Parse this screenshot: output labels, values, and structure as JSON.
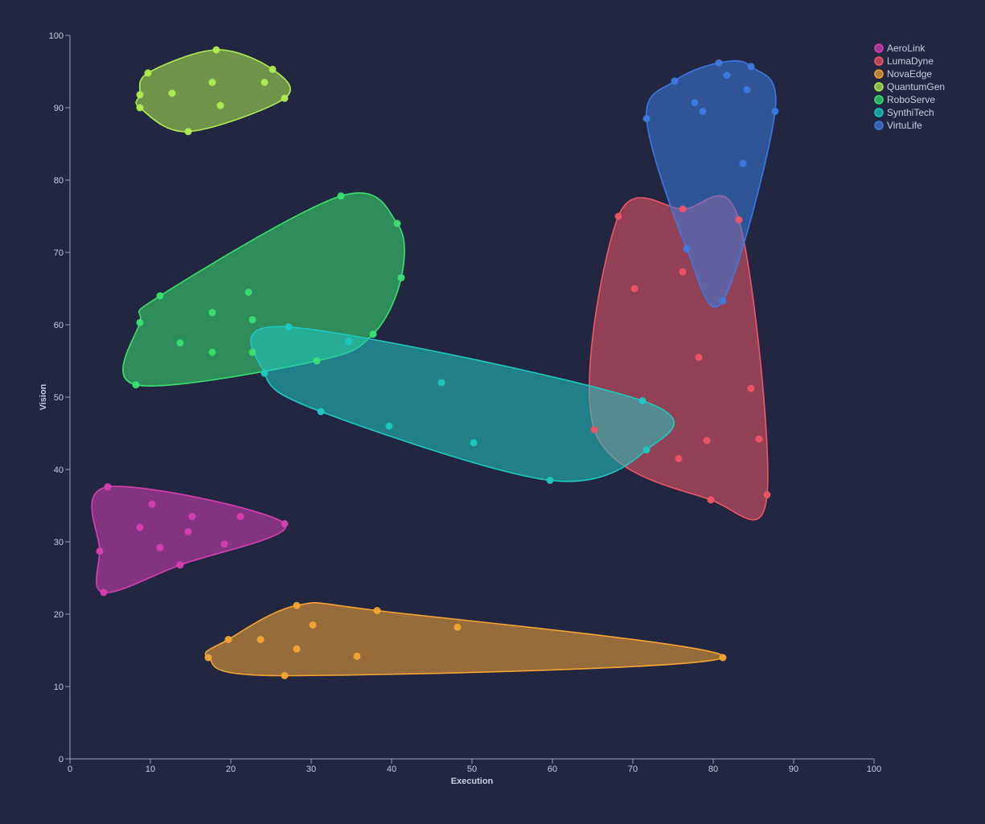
{
  "chart_data": {
    "type": "scatter",
    "title": "",
    "xlabel": "Execution",
    "ylabel": "Vision",
    "xlim": [
      0,
      100
    ],
    "ylim": [
      0,
      100
    ],
    "x_ticks": [
      "0",
      "10",
      "20",
      "30",
      "40",
      "50",
      "60",
      "70",
      "80",
      "90",
      "100"
    ],
    "y_ticks": [
      "0",
      "10",
      "20",
      "30",
      "40",
      "50",
      "60",
      "70",
      "80",
      "90",
      "100"
    ],
    "grid": false,
    "legend_position": "top-right",
    "hull_style": "rounded convex hull per series",
    "series": [
      {
        "name": "AeroLink",
        "color": "#d63fb0",
        "points": [
          [
            4.7,
            37.6
          ],
          [
            10.2,
            35.2
          ],
          [
            8.7,
            32.0
          ],
          [
            15.2,
            33.5
          ],
          [
            21.2,
            33.5
          ],
          [
            26.7,
            32.5
          ],
          [
            14.7,
            31.4
          ],
          [
            11.2,
            29.2
          ],
          [
            19.2,
            29.7
          ],
          [
            13.7,
            26.8
          ],
          [
            3.7,
            28.7
          ],
          [
            4.2,
            23.0
          ]
        ]
      },
      {
        "name": "LumaDyne",
        "color": "#ef5566",
        "points": [
          [
            68.2,
            75.0
          ],
          [
            76.2,
            76.0
          ],
          [
            83.2,
            74.5
          ],
          [
            76.2,
            67.3
          ],
          [
            70.2,
            65.0
          ],
          [
            78.2,
            55.5
          ],
          [
            84.7,
            51.2
          ],
          [
            65.2,
            45.5
          ],
          [
            79.2,
            44.0
          ],
          [
            85.7,
            44.2
          ],
          [
            75.7,
            41.5
          ],
          [
            79.7,
            35.8
          ],
          [
            86.7,
            36.5
          ]
        ]
      },
      {
        "name": "NovaEdge",
        "color": "#f4a534",
        "points": [
          [
            28.2,
            21.2
          ],
          [
            38.2,
            20.5
          ],
          [
            30.2,
            18.5
          ],
          [
            48.2,
            18.2
          ],
          [
            19.7,
            16.5
          ],
          [
            23.7,
            16.5
          ],
          [
            28.2,
            15.2
          ],
          [
            35.7,
            14.2
          ],
          [
            17.2,
            14.0
          ],
          [
            81.2,
            14.0
          ],
          [
            26.7,
            11.5
          ]
        ]
      },
      {
        "name": "QuantumGen",
        "color": "#b0ec51",
        "points": [
          [
            18.2,
            98.0
          ],
          [
            9.7,
            94.8
          ],
          [
            25.2,
            95.3
          ],
          [
            17.7,
            93.5
          ],
          [
            24.2,
            93.5
          ],
          [
            8.7,
            91.8
          ],
          [
            12.7,
            92.0
          ],
          [
            26.7,
            91.3
          ],
          [
            8.7,
            90.0
          ],
          [
            18.7,
            90.3
          ],
          [
            14.7,
            86.7
          ]
        ]
      },
      {
        "name": "RoboServe",
        "color": "#3be071",
        "points": [
          [
            33.7,
            77.8
          ],
          [
            40.7,
            74.0
          ],
          [
            41.2,
            66.5
          ],
          [
            22.2,
            64.5
          ],
          [
            11.2,
            64.0
          ],
          [
            17.7,
            61.7
          ],
          [
            22.7,
            60.7
          ],
          [
            8.7,
            60.3
          ],
          [
            37.7,
            58.7
          ],
          [
            13.7,
            57.5
          ],
          [
            17.7,
            56.2
          ],
          [
            22.7,
            56.2
          ],
          [
            30.7,
            55.0
          ],
          [
            8.2,
            51.7
          ]
        ]
      },
      {
        "name": "SynthiTech",
        "color": "#1fc9c1",
        "points": [
          [
            27.2,
            59.7
          ],
          [
            34.7,
            57.7
          ],
          [
            24.2,
            53.3
          ],
          [
            46.2,
            52.0
          ],
          [
            71.2,
            49.5
          ],
          [
            31.2,
            48.0
          ],
          [
            39.7,
            46.0
          ],
          [
            50.2,
            43.7
          ],
          [
            71.7,
            42.7
          ],
          [
            59.7,
            38.5
          ]
        ]
      },
      {
        "name": "VirtuLife",
        "color": "#3c7ae0",
        "points": [
          [
            80.7,
            96.2
          ],
          [
            84.7,
            95.7
          ],
          [
            81.7,
            94.5
          ],
          [
            75.2,
            93.7
          ],
          [
            84.2,
            92.5
          ],
          [
            77.7,
            90.7
          ],
          [
            78.7,
            89.5
          ],
          [
            87.7,
            89.5
          ],
          [
            71.7,
            88.5
          ],
          [
            83.7,
            82.3
          ],
          [
            76.7,
            70.5
          ],
          [
            81.2,
            63.3
          ]
        ]
      }
    ]
  }
}
